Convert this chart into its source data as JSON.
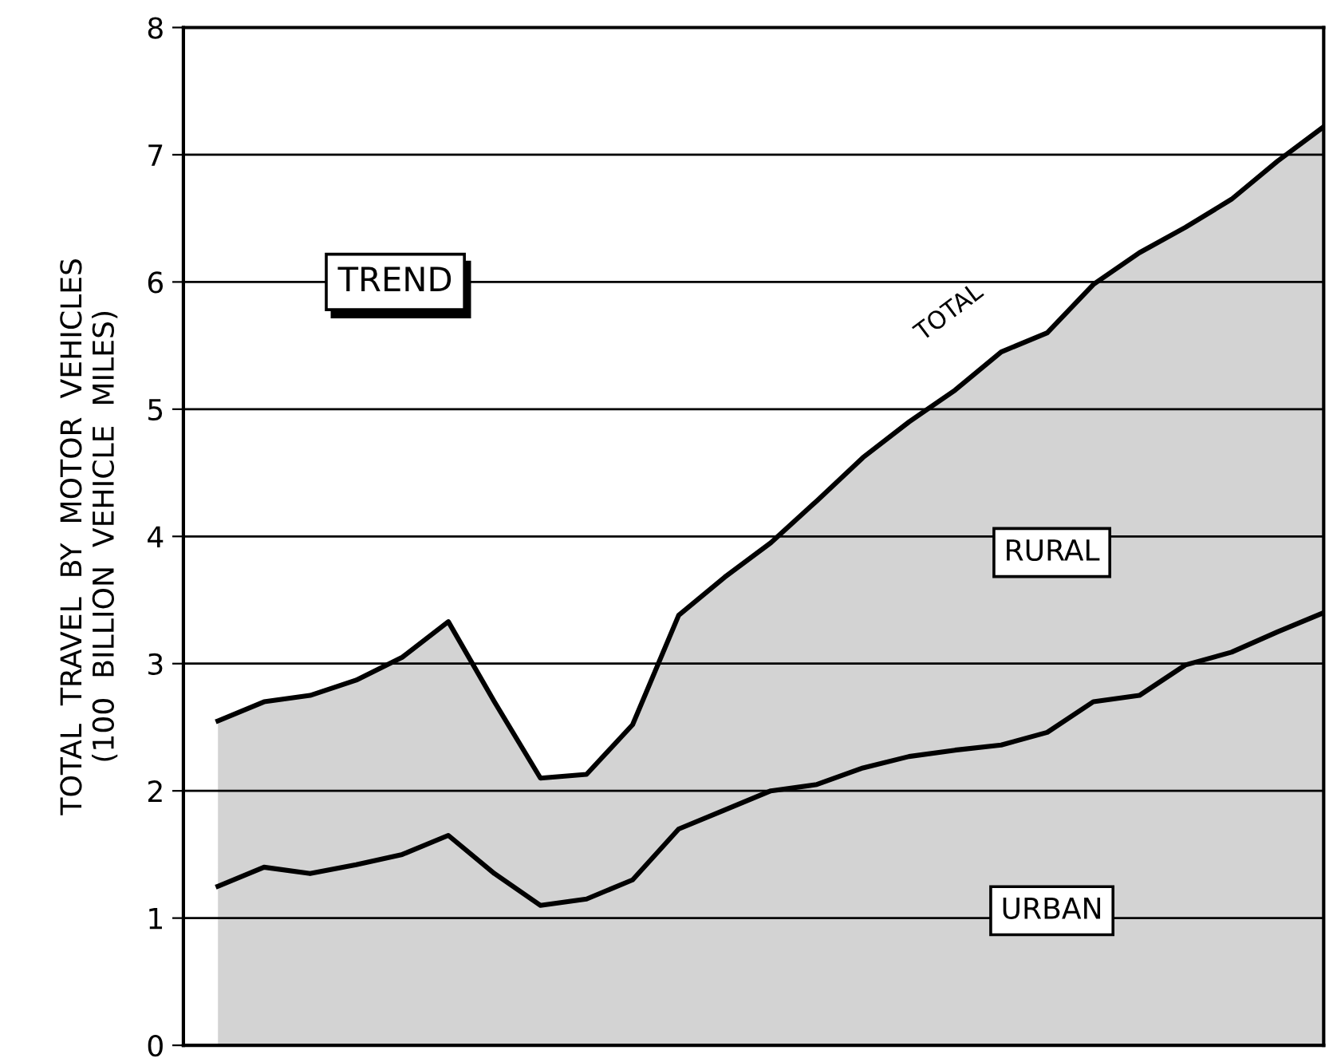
{
  "chart_data": {
    "type": "area",
    "stacked": true,
    "ylabel": "TOTAL  TRAVEL  BY  MOTOR  VEHICLES\n(100  BILLION  VEHICLE  MILES)",
    "categories": [
      null,
      null,
      null,
      null,
      null,
      null,
      null,
      null,
      null,
      null,
      null,
      null,
      null,
      null,
      null,
      null,
      null,
      null,
      null,
      null,
      null,
      null,
      null,
      null,
      null
    ],
    "series": [
      {
        "name": "URBAN",
        "color": "#d3d3d3",
        "values": [
          1.25,
          1.4,
          1.35,
          1.42,
          1.5,
          1.65,
          1.35,
          1.1,
          1.15,
          1.3,
          1.7,
          1.85,
          2.0,
          2.05,
          2.18,
          2.27,
          2.32,
          2.36,
          2.46,
          2.7,
          2.75,
          2.99,
          3.09,
          3.25,
          3.4
        ]
      },
      {
        "name": "RURAL",
        "color": "#d3d3d3",
        "values": [
          1.3,
          1.3,
          1.4,
          1.45,
          1.55,
          1.68,
          1.35,
          1.0,
          0.98,
          1.22,
          1.68,
          1.83,
          1.95,
          2.23,
          2.44,
          2.63,
          2.83,
          3.09,
          3.14,
          3.28,
          3.48,
          3.44,
          3.56,
          3.7,
          3.82
        ]
      }
    ],
    "annotations": [
      "TREND",
      "TOTAL"
    ],
    "ylim": [
      0,
      8
    ],
    "yticks": [
      0,
      1,
      2,
      3,
      4,
      5,
      6,
      7,
      8
    ],
    "grid": "y",
    "legend": false,
    "marker": "none",
    "line_style": "solid"
  }
}
